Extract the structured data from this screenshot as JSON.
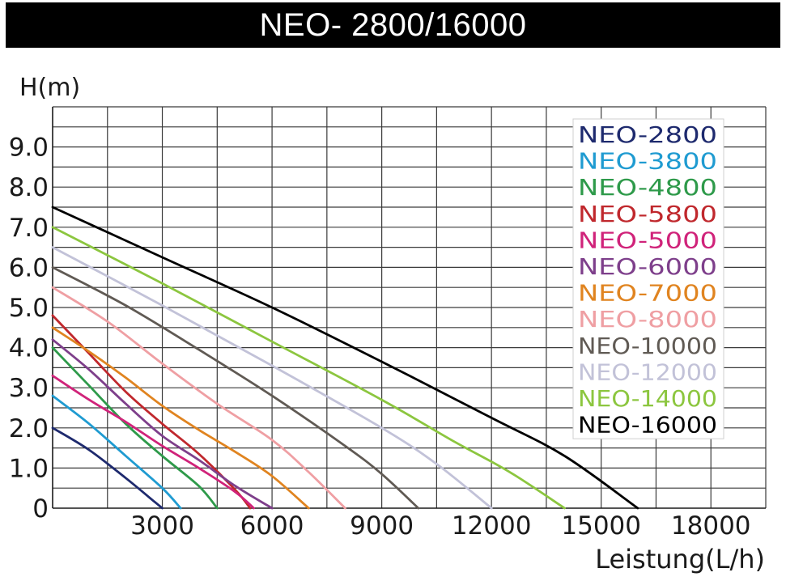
{
  "header": {
    "title": "NEO- 2800/16000"
  },
  "chart_data": {
    "type": "line",
    "title": "NEO- 2800/16000",
    "ylabel": "H(m)",
    "xlabel": "Leistung(L/h)",
    "xlim": [
      0,
      19500
    ],
    "ylim": [
      0,
      10
    ],
    "grid": true,
    "legend_position": "top-right",
    "x_ticks": [
      {
        "value": 3000,
        "label": "3000"
      },
      {
        "value": 6000,
        "label": "6000"
      },
      {
        "value": 9000,
        "label": "9000"
      },
      {
        "value": 12000,
        "label": "12000"
      },
      {
        "value": 15000,
        "label": "15000"
      },
      {
        "value": 18000,
        "label": "18000"
      }
    ],
    "y_ticks": [
      {
        "value": 0,
        "label": "0"
      },
      {
        "value": 1,
        "label": "1.0"
      },
      {
        "value": 2,
        "label": "2.0"
      },
      {
        "value": 3,
        "label": "3.0"
      },
      {
        "value": 4,
        "label": "4.0"
      },
      {
        "value": 5,
        "label": "5.0"
      },
      {
        "value": 6,
        "label": "6.0"
      },
      {
        "value": 7,
        "label": "7.0"
      },
      {
        "value": 8,
        "label": "8.0"
      },
      {
        "value": 9,
        "label": "9.0"
      }
    ],
    "series": [
      {
        "name": "NEO-2800",
        "color": "#1e2a6e",
        "x": [
          0,
          1000,
          2000,
          2800,
          3000
        ],
        "y": [
          2.0,
          1.45,
          0.75,
          0.15,
          0
        ]
      },
      {
        "name": "NEO-3800",
        "color": "#1f9bd1",
        "x": [
          0,
          1000,
          2000,
          3000,
          3500
        ],
        "y": [
          2.8,
          2.1,
          1.3,
          0.5,
          0
        ]
      },
      {
        "name": "NEO-4800",
        "color": "#2e9a4a",
        "x": [
          0,
          1000,
          2000,
          3000,
          4000,
          4500
        ],
        "y": [
          4.0,
          3.05,
          2.1,
          1.3,
          0.55,
          0
        ]
      },
      {
        "name": "NEO-5800",
        "color": "#c0282d",
        "x": [
          0,
          1000,
          2000,
          3000,
          4000,
          5000,
          5400
        ],
        "y": [
          4.8,
          3.85,
          2.9,
          2.1,
          1.35,
          0.45,
          0
        ]
      },
      {
        "name": "NEO-5000",
        "color": "#d0237a",
        "x": [
          0,
          1000,
          2000,
          3000,
          4000,
          5000,
          5500
        ],
        "y": [
          3.3,
          2.7,
          2.15,
          1.55,
          1.0,
          0.4,
          0
        ]
      },
      {
        "name": "NEO-6000",
        "color": "#7e3f8b",
        "x": [
          0,
          1000,
          2000,
          3000,
          4000,
          5000,
          6000
        ],
        "y": [
          4.2,
          3.45,
          2.6,
          1.8,
          1.2,
          0.55,
          0
        ]
      },
      {
        "name": "NEO-7000",
        "color": "#e08420",
        "x": [
          0,
          1000,
          2000,
          3000,
          4000,
          5000,
          6000,
          7000
        ],
        "y": [
          4.5,
          3.9,
          3.25,
          2.55,
          1.95,
          1.4,
          0.8,
          0
        ]
      },
      {
        "name": "NEO-8000",
        "color": "#ef9fa3",
        "x": [
          0,
          1500,
          3000,
          4500,
          6000,
          7000,
          8000
        ],
        "y": [
          5.5,
          4.65,
          3.6,
          2.6,
          1.7,
          0.9,
          0
        ]
      },
      {
        "name": "NEO-10000",
        "color": "#605a54",
        "x": [
          0,
          2000,
          4000,
          6000,
          8000,
          9000,
          10000
        ],
        "y": [
          6.0,
          5.05,
          3.95,
          2.8,
          1.55,
          0.85,
          0
        ]
      },
      {
        "name": "NEO-12000",
        "color": "#c2c2d8",
        "x": [
          0,
          3000,
          6000,
          9000,
          10500,
          12000
        ],
        "y": [
          6.5,
          5.05,
          3.55,
          2.0,
          1.1,
          0
        ]
      },
      {
        "name": "NEO-14000",
        "color": "#8cc63f",
        "x": [
          0,
          3000,
          6000,
          9000,
          11000,
          12500,
          14000
        ],
        "y": [
          7.0,
          5.6,
          4.15,
          2.7,
          1.65,
          0.9,
          0
        ]
      },
      {
        "name": "NEO-16000",
        "color": "#000000",
        "x": [
          0,
          3000,
          6000,
          9000,
          12000,
          14000,
          16000
        ],
        "y": [
          7.5,
          6.25,
          5.0,
          3.65,
          2.25,
          1.3,
          0
        ]
      }
    ]
  }
}
